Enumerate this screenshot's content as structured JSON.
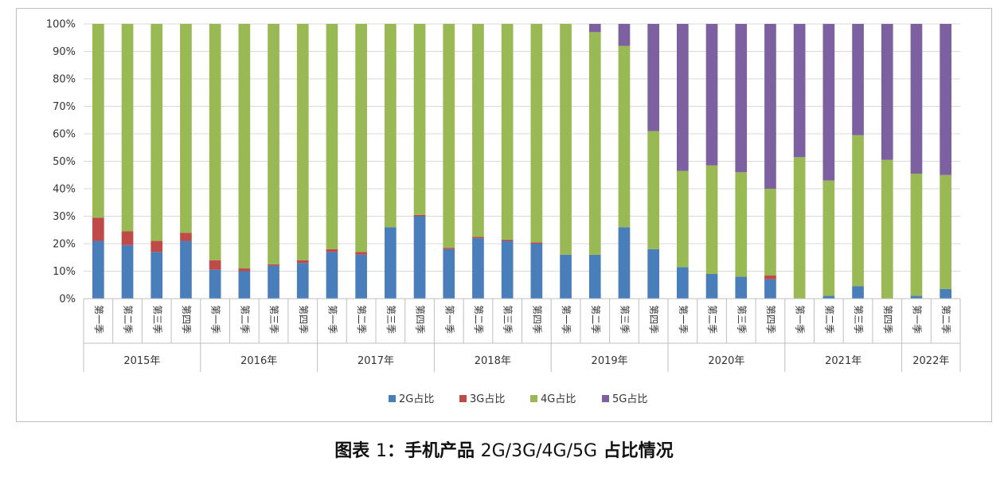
{
  "chart_data": {
    "type": "bar",
    "stacked": true,
    "percent": true,
    "ylim": [
      0,
      100
    ],
    "y_ticks": [
      "0%",
      "10%",
      "20%",
      "30%",
      "40%",
      "50%",
      "60%",
      "70%",
      "80%",
      "90%",
      "100%"
    ],
    "grid": true,
    "legend_position": "bottom",
    "years": [
      {
        "label": "2015年",
        "quarters": [
          "第一季",
          "第二季",
          "第三季",
          "第四季"
        ]
      },
      {
        "label": "2016年",
        "quarters": [
          "第一季",
          "第二季",
          "第三季",
          "第四季"
        ]
      },
      {
        "label": "2017年",
        "quarters": [
          "第一季",
          "第二季",
          "第三季",
          "第四季"
        ]
      },
      {
        "label": "2018年",
        "quarters": [
          "第一季",
          "第二季",
          "第三季",
          "第四季"
        ]
      },
      {
        "label": "2019年",
        "quarters": [
          "第一季",
          "第二季",
          "第三季",
          "第四季"
        ]
      },
      {
        "label": "2020年",
        "quarters": [
          "第一季",
          "第二季",
          "第三季",
          "第四季"
        ]
      },
      {
        "label": "2021年",
        "quarters": [
          "第一季",
          "第二季",
          "第三季",
          "第四季"
        ]
      },
      {
        "label": "2022年",
        "quarters": [
          "第一季",
          "第二季"
        ]
      }
    ],
    "series": [
      {
        "name": "2G占比",
        "color": "#4a7ebb",
        "values": [
          21,
          19.5,
          17,
          21,
          10.5,
          10,
          12,
          13,
          17,
          16,
          26,
          30,
          18,
          22,
          21,
          20,
          16,
          16,
          26,
          18,
          11.5,
          9,
          8,
          7,
          0,
          1,
          4.5,
          0,
          1,
          3.5
        ]
      },
      {
        "name": "3G占比",
        "color": "#be4b48",
        "values": [
          8.5,
          5,
          4,
          3,
          3.5,
          1,
          0.5,
          1,
          1,
          1,
          0,
          0.5,
          0.5,
          0.5,
          0.5,
          0.5,
          0,
          0,
          0,
          0,
          0,
          0,
          0,
          1.5,
          0,
          0,
          0,
          0,
          0,
          0
        ]
      },
      {
        "name": "4G占比",
        "color": "#98b954",
        "values": [
          70.5,
          75.5,
          79,
          76,
          86,
          89,
          87.5,
          86,
          82,
          83,
          74,
          69.5,
          81.5,
          77.5,
          78.5,
          79.5,
          84,
          81,
          66,
          43,
          35,
          39.5,
          38,
          31.5,
          51.5,
          42,
          55,
          50.5,
          44.5,
          41.5
        ]
      },
      {
        "name": "5G占比",
        "color": "#7d60a0",
        "values": [
          0,
          0,
          0,
          0,
          0,
          0,
          0,
          0,
          0,
          0,
          0,
          0,
          0,
          0,
          0,
          0,
          0,
          3,
          8,
          39,
          53.5,
          51.5,
          54,
          60,
          48.5,
          57,
          40.5,
          49.5,
          54.5,
          55
        ]
      }
    ]
  },
  "caption": {
    "prefix": "图表",
    "number": "1",
    "colon": "：",
    "title_cn_1": "手机产品",
    "title_lat": "2G/3G/4G/5G",
    "title_cn_2": "占比情况"
  }
}
